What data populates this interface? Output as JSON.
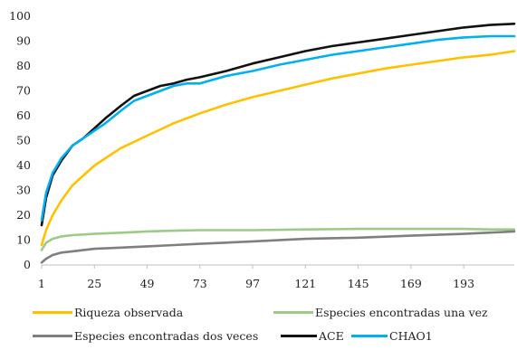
{
  "chart_data": {
    "type": "line",
    "title": "",
    "xlabel": "",
    "ylabel": "",
    "x_ticks": [
      "1",
      "25",
      "49",
      "73",
      "97",
      "121",
      "145",
      "169",
      "193"
    ],
    "y_ticks": [
      "0",
      "10",
      "20",
      "30",
      "40",
      "50",
      "60",
      "70",
      "80",
      "90",
      "100"
    ],
    "xlim": [
      1,
      216
    ],
    "ylim": [
      0,
      100
    ],
    "grid": false,
    "legend_position": "bottom",
    "series": [
      {
        "name": "Riqueza observada",
        "color": "#ffc000",
        "x": [
          1,
          3,
          6,
          10,
          15,
          25,
          37,
          49,
          61,
          73,
          85,
          97,
          109,
          121,
          133,
          145,
          157,
          169,
          181,
          193,
          205,
          216
        ],
        "y": [
          8,
          14,
          20,
          26,
          32,
          40,
          47,
          52,
          57,
          61,
          64.5,
          67.5,
          70,
          72.5,
          75,
          77,
          79,
          80.5,
          82,
          83.5,
          84.5,
          86
        ]
      },
      {
        "name": "Especies encontradas una vez",
        "color": "#9bcb87",
        "x": [
          1,
          3,
          6,
          10,
          15,
          25,
          37,
          49,
          61,
          73,
          85,
          97,
          121,
          145,
          169,
          193,
          205,
          216
        ],
        "y": [
          6,
          9,
          10.5,
          11.5,
          12,
          12.5,
          13,
          13.5,
          13.8,
          14,
          14,
          14,
          14.3,
          14.5,
          14.5,
          14.5,
          14.3,
          14.3
        ]
      },
      {
        "name": "Especies encontradas dos veces",
        "color": "#7f7f7f",
        "x": [
          1,
          3,
          6,
          10,
          15,
          25,
          37,
          49,
          61,
          73,
          85,
          97,
          121,
          145,
          169,
          193,
          216
        ],
        "y": [
          1,
          2.5,
          4,
          5,
          5.5,
          6.5,
          7,
          7.5,
          8,
          8.5,
          9,
          9.5,
          10.5,
          11,
          11.8,
          12.5,
          13.5
        ]
      },
      {
        "name": "ACE",
        "color": "#111111",
        "x": [
          1,
          3,
          6,
          10,
          15,
          20,
          25,
          30,
          37,
          43,
          49,
          55,
          61,
          67,
          73,
          85,
          97,
          109,
          121,
          133,
          145,
          157,
          169,
          181,
          193,
          205,
          216
        ],
        "y": [
          16,
          27,
          36,
          42,
          48,
          51,
          55,
          59,
          64,
          68,
          70,
          72,
          73,
          74.5,
          75.5,
          78,
          81,
          83.5,
          86,
          88,
          89.5,
          91,
          92.5,
          94,
          95.5,
          96.5,
          97
        ]
      },
      {
        "name": "CHAO1",
        "color": "#00b0f0",
        "x": [
          1,
          3,
          6,
          10,
          15,
          20,
          25,
          30,
          37,
          43,
          49,
          55,
          61,
          67,
          73,
          85,
          97,
          109,
          121,
          133,
          145,
          157,
          169,
          181,
          193,
          205,
          216
        ],
        "y": [
          18,
          29,
          37,
          43,
          48,
          51,
          54,
          57,
          62,
          66,
          68,
          70,
          72,
          73,
          73,
          76,
          78,
          80.5,
          82.5,
          84.5,
          86,
          87.5,
          89,
          90.5,
          91.5,
          92,
          92
        ]
      }
    ]
  }
}
